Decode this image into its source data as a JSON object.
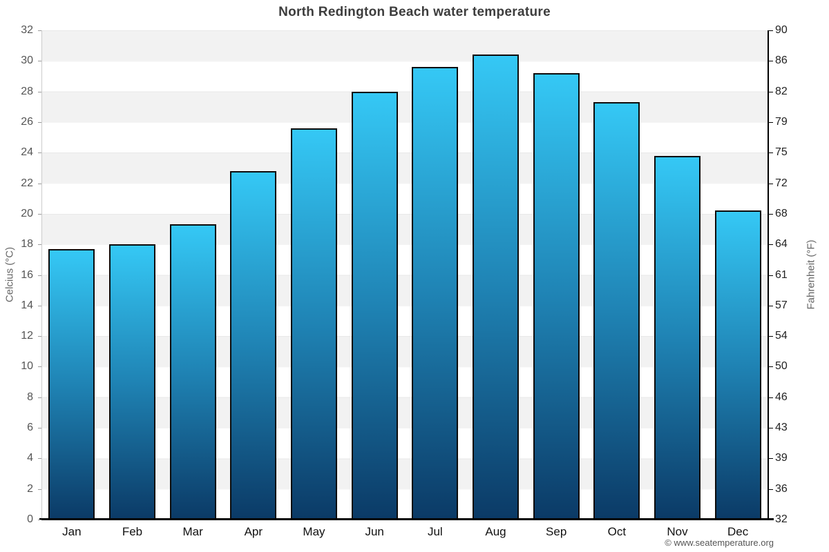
{
  "chart_data": {
    "type": "bar",
    "title": "North Redington Beach water temperature",
    "categories": [
      "Jan",
      "Feb",
      "Mar",
      "Apr",
      "May",
      "Jun",
      "Jul",
      "Aug",
      "Sep",
      "Oct",
      "Nov",
      "Dec"
    ],
    "values": [
      17.7,
      18.0,
      19.3,
      22.8,
      25.6,
      28.0,
      29.6,
      30.4,
      29.2,
      27.3,
      23.8,
      20.2
    ],
    "value_unit": "°C",
    "ylabel_left": "Celcius (°C)",
    "ylabel_right": "Fahrenheit (°F)",
    "ylim_celsius": [
      0,
      32
    ],
    "celsius_ticks": [
      0,
      2,
      4,
      6,
      8,
      10,
      12,
      14,
      16,
      18,
      20,
      22,
      24,
      26,
      28,
      30,
      32
    ],
    "fahrenheit_tick_labels": [
      "32",
      "36",
      "39",
      "43",
      "46",
      "50",
      "54",
      "57",
      "61",
      "64",
      "68",
      "72",
      "75",
      "79",
      "82",
      "86",
      "90"
    ],
    "legend": "none",
    "grid": "alternating horizontal bands every 2°C",
    "colors": {
      "bar_top": "#35c8f5",
      "bar_mid": "#1f83b4",
      "bar_bottom": "#0b3a66",
      "bar_border": "#0b0b0b",
      "band_gray": "#f2f2f2",
      "band_white": "#ffffff",
      "title_text": "#3d3d3d",
      "axis_text": "#555555",
      "month_text": "#111111"
    }
  },
  "footer": {
    "attribution": "© www.seatemperature.org"
  }
}
